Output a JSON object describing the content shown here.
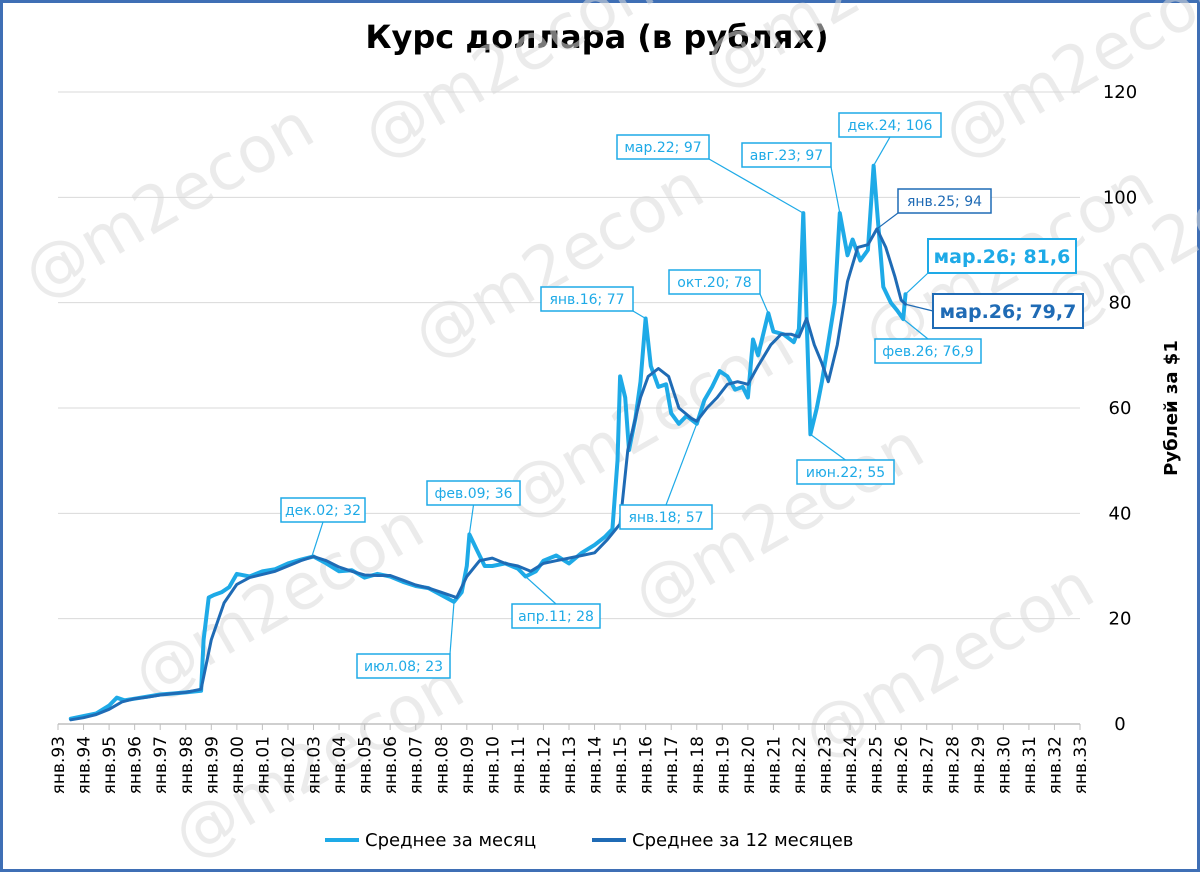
{
  "chart_data": {
    "type": "line",
    "title": "Курс доллара (в рублях)",
    "ylabel": "Рублей за $1",
    "ylim": [
      0,
      120
    ],
    "yticks": [
      "0",
      "20",
      "40",
      "60",
      "80",
      "100",
      "120"
    ],
    "x_labels": [
      "янв.93",
      "янв.94",
      "янв.95",
      "янв.96",
      "янв.97",
      "янв.98",
      "янв.99",
      "янв.00",
      "янв.01",
      "янв.02",
      "янв.03",
      "янв.04",
      "янв.05",
      "янв.06",
      "янв.07",
      "янв.08",
      "янв.09",
      "янв.10",
      "янв.11",
      "янв.12",
      "янв.13",
      "янв.14",
      "янв.15",
      "янв.16",
      "янв.17",
      "янв.18",
      "янв.19",
      "янв.20",
      "янв.21",
      "янв.22",
      "янв.23",
      "янв.24",
      "янв.25",
      "янв.26",
      "янв.27",
      "янв.28",
      "янв.29",
      "янв.30",
      "янв.31",
      "янв.32",
      "янв.33"
    ],
    "grid": true,
    "legend_position": "bottom",
    "watermark": "@m2econ",
    "series": [
      {
        "name": "Среднее за месяц",
        "color": "#1eaae7",
        "points": [
          [
            1993.5,
            1.0
          ],
          [
            1994.0,
            1.5
          ],
          [
            1994.5,
            2.0
          ],
          [
            1995.0,
            3.5
          ],
          [
            1995.3,
            5.0
          ],
          [
            1995.6,
            4.5
          ],
          [
            1996.0,
            4.8
          ],
          [
            1996.5,
            5.2
          ],
          [
            1997.0,
            5.6
          ],
          [
            1997.5,
            5.8
          ],
          [
            1998.0,
            6.0
          ],
          [
            1998.6,
            6.3
          ],
          [
            1998.7,
            16.0
          ],
          [
            1998.9,
            24.0
          ],
          [
            1999.1,
            24.5
          ],
          [
            1999.4,
            25.0
          ],
          [
            1999.7,
            26.0
          ],
          [
            2000.0,
            28.5
          ],
          [
            2000.5,
            28.0
          ],
          [
            2001.0,
            29.0
          ],
          [
            2001.5,
            29.4
          ],
          [
            2002.0,
            30.5
          ],
          [
            2002.5,
            31.2
          ],
          [
            2003.0,
            31.8
          ],
          [
            2003.5,
            30.5
          ],
          [
            2004.0,
            29.0
          ],
          [
            2004.5,
            29.2
          ],
          [
            2005.0,
            27.8
          ],
          [
            2005.5,
            28.5
          ],
          [
            2006.0,
            28.0
          ],
          [
            2006.5,
            27.0
          ],
          [
            2007.0,
            26.2
          ],
          [
            2007.5,
            25.8
          ],
          [
            2008.0,
            24.5
          ],
          [
            2008.5,
            23.2
          ],
          [
            2008.8,
            25.0
          ],
          [
            2009.0,
            30.0
          ],
          [
            2009.1,
            36.0
          ],
          [
            2009.4,
            33.0
          ],
          [
            2009.7,
            30.0
          ],
          [
            2010.0,
            30.0
          ],
          [
            2010.5,
            30.5
          ],
          [
            2011.0,
            29.5
          ],
          [
            2011.3,
            28.0
          ],
          [
            2011.7,
            29.0
          ],
          [
            2012.0,
            31.0
          ],
          [
            2012.5,
            32.0
          ],
          [
            2013.0,
            30.5
          ],
          [
            2013.5,
            32.5
          ],
          [
            2014.0,
            34.0
          ],
          [
            2014.4,
            35.5
          ],
          [
            2014.7,
            37.0
          ],
          [
            2014.9,
            50.0
          ],
          [
            2015.0,
            66.0
          ],
          [
            2015.2,
            62.0
          ],
          [
            2015.35,
            52.0
          ],
          [
            2015.6,
            58.0
          ],
          [
            2015.8,
            65.0
          ],
          [
            2016.0,
            77.0
          ],
          [
            2016.2,
            68.0
          ],
          [
            2016.5,
            64.0
          ],
          [
            2016.8,
            64.5
          ],
          [
            2017.0,
            59.0
          ],
          [
            2017.3,
            57.0
          ],
          [
            2017.6,
            58.5
          ],
          [
            2018.0,
            57.0
          ],
          [
            2018.3,
            61.5
          ],
          [
            2018.6,
            64.0
          ],
          [
            2018.9,
            67.0
          ],
          [
            2019.2,
            66.0
          ],
          [
            2019.5,
            63.5
          ],
          [
            2019.8,
            64.0
          ],
          [
            2020.0,
            62.0
          ],
          [
            2020.2,
            73.0
          ],
          [
            2020.4,
            70.0
          ],
          [
            2020.8,
            78.0
          ],
          [
            2021.0,
            74.5
          ],
          [
            2021.4,
            74.0
          ],
          [
            2021.8,
            72.5
          ],
          [
            2022.0,
            75.0
          ],
          [
            2022.17,
            97.0
          ],
          [
            2022.3,
            77.0
          ],
          [
            2022.45,
            55.0
          ],
          [
            2022.7,
            60.0
          ],
          [
            2022.9,
            65.0
          ],
          [
            2023.1,
            71.0
          ],
          [
            2023.4,
            80.0
          ],
          [
            2023.6,
            97.0
          ],
          [
            2023.9,
            89.0
          ],
          [
            2024.1,
            92.0
          ],
          [
            2024.4,
            88.0
          ],
          [
            2024.7,
            90.0
          ],
          [
            2024.92,
            106.0
          ],
          [
            2025.05,
            98.0
          ],
          [
            2025.3,
            83.0
          ],
          [
            2025.6,
            80.0
          ],
          [
            2025.85,
            78.5
          ],
          [
            2026.08,
            76.9
          ],
          [
            2026.17,
            81.6
          ]
        ]
      },
      {
        "name": "Среднее за 12 месяцев",
        "color": "#1f6bb5",
        "points": [
          [
            1993.5,
            0.8
          ],
          [
            1994.0,
            1.2
          ],
          [
            1994.5,
            1.8
          ],
          [
            1995.0,
            2.8
          ],
          [
            1995.5,
            4.2
          ],
          [
            1996.0,
            4.8
          ],
          [
            1996.5,
            5.1
          ],
          [
            1997.0,
            5.5
          ],
          [
            1997.5,
            5.8
          ],
          [
            1998.0,
            6.0
          ],
          [
            1998.6,
            6.6
          ],
          [
            1999.0,
            16.0
          ],
          [
            1999.5,
            23.0
          ],
          [
            2000.0,
            26.5
          ],
          [
            2000.5,
            27.8
          ],
          [
            2001.0,
            28.4
          ],
          [
            2001.5,
            29.0
          ],
          [
            2002.0,
            30.0
          ],
          [
            2002.5,
            31.0
          ],
          [
            2003.0,
            31.8
          ],
          [
            2003.5,
            31.0
          ],
          [
            2004.0,
            29.8
          ],
          [
            2004.5,
            29.0
          ],
          [
            2005.0,
            28.3
          ],
          [
            2005.5,
            28.2
          ],
          [
            2006.0,
            28.2
          ],
          [
            2006.5,
            27.3
          ],
          [
            2007.0,
            26.4
          ],
          [
            2007.5,
            25.8
          ],
          [
            2008.0,
            25.0
          ],
          [
            2008.6,
            24.0
          ],
          [
            2009.0,
            28.0
          ],
          [
            2009.5,
            31.0
          ],
          [
            2010.0,
            31.5
          ],
          [
            2010.5,
            30.5
          ],
          [
            2011.0,
            30.0
          ],
          [
            2011.5,
            29.0
          ],
          [
            2012.0,
            30.5
          ],
          [
            2012.5,
            31.0
          ],
          [
            2013.0,
            31.5
          ],
          [
            2013.5,
            32.0
          ],
          [
            2014.0,
            32.5
          ],
          [
            2014.5,
            35.0
          ],
          [
            2015.0,
            38.0
          ],
          [
            2015.3,
            52.0
          ],
          [
            2015.8,
            62.0
          ],
          [
            2016.1,
            66.0
          ],
          [
            2016.5,
            67.5
          ],
          [
            2016.9,
            66.0
          ],
          [
            2017.3,
            60.0
          ],
          [
            2017.8,
            58.0
          ],
          [
            2018.0,
            57.5
          ],
          [
            2018.4,
            60.0
          ],
          [
            2018.8,
            62.0
          ],
          [
            2019.2,
            64.5
          ],
          [
            2019.6,
            65.0
          ],
          [
            2020.0,
            64.5
          ],
          [
            2020.4,
            68.0
          ],
          [
            2020.9,
            72.0
          ],
          [
            2021.3,
            74.0
          ],
          [
            2021.7,
            74.0
          ],
          [
            2022.0,
            73.5
          ],
          [
            2022.3,
            77.0
          ],
          [
            2022.6,
            72.0
          ],
          [
            2022.9,
            68.5
          ],
          [
            2023.15,
            65.0
          ],
          [
            2023.5,
            72.0
          ],
          [
            2023.9,
            84.0
          ],
          [
            2024.3,
            90.5
          ],
          [
            2024.7,
            91.0
          ],
          [
            2025.05,
            94.0
          ],
          [
            2025.4,
            90.5
          ],
          [
            2025.75,
            85.0
          ],
          [
            2026.0,
            80.5
          ],
          [
            2026.17,
            79.7
          ]
        ]
      }
    ],
    "annotations": [
      {
        "text": "дек.02; 32",
        "size": "small",
        "color": "#1eaae7"
      },
      {
        "text": "июл.08; 23",
        "size": "small",
        "color": "#1eaae7"
      },
      {
        "text": "фев.09; 36",
        "size": "small",
        "color": "#1eaae7"
      },
      {
        "text": "апр.11; 28",
        "size": "small",
        "color": "#1eaae7"
      },
      {
        "text": "янв.16; 77",
        "size": "small",
        "color": "#1eaae7"
      },
      {
        "text": "янв.18; 57",
        "size": "small",
        "color": "#1eaae7"
      },
      {
        "text": "окт.20; 78",
        "size": "small",
        "color": "#1eaae7"
      },
      {
        "text": "мар.22; 97",
        "size": "small",
        "color": "#1eaae7"
      },
      {
        "text": "июн.22; 55",
        "size": "small",
        "color": "#1eaae7"
      },
      {
        "text": "авг.23; 97",
        "size": "small",
        "color": "#1eaae7"
      },
      {
        "text": "дек.24; 106",
        "size": "small",
        "color": "#1eaae7"
      },
      {
        "text": "янв.25; 94",
        "size": "small",
        "color": "#1f6bb5"
      },
      {
        "text": "мар.26; 81,6",
        "size": "big",
        "color": "#1eaae7"
      },
      {
        "text": "мар.26; 79,7",
        "size": "big",
        "color": "#1f6bb5"
      },
      {
        "text": "фев.26; 76,9",
        "size": "small",
        "color": "#1eaae7"
      }
    ]
  }
}
